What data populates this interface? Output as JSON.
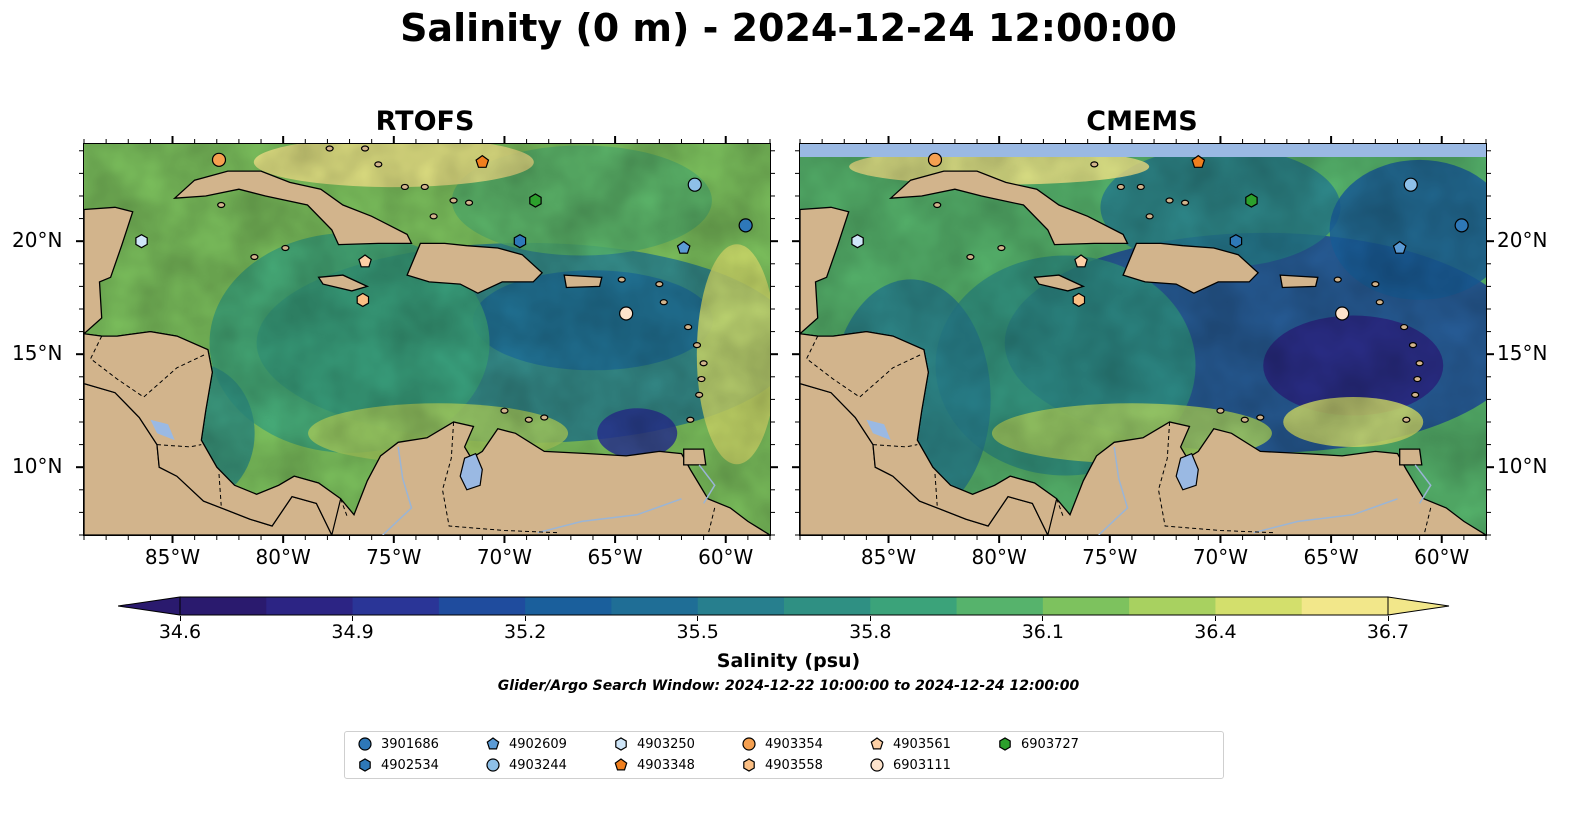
{
  "title": "Salinity (0 m) - 2024-12-24 12:00:00",
  "panels": [
    {
      "title": "RTOFS"
    },
    {
      "title": "CMEMS"
    }
  ],
  "map": {
    "lon_labels": [
      "85°W",
      "80°W",
      "75°W",
      "70°W",
      "65°W",
      "60°W"
    ],
    "lat_labels": [
      "20°N",
      "15°N",
      "10°N"
    ],
    "land_color": "#d2b48c",
    "lake_color": "#9ab9e3"
  },
  "colorbar": {
    "label": "Salinity (psu)",
    "ticks": [
      "34.6",
      "34.9",
      "35.2",
      "35.5",
      "35.8",
      "36.1",
      "36.4",
      "36.7"
    ],
    "vmin": 34.6,
    "vmax": 36.7,
    "colors": [
      "#2a1a6e",
      "#2c2484",
      "#2a3597",
      "#1f4c9e",
      "#1a5f9c",
      "#1f6e96",
      "#277f8e",
      "#2f9083",
      "#3ba37a",
      "#56b36c",
      "#7dc25e",
      "#a8d160",
      "#d3df6c",
      "#f2e78a"
    ]
  },
  "search_window": "Glider/Argo Search Window: 2024-12-22 10:00:00 to 2024-12-24 12:00:00",
  "legend": {
    "items": [
      {
        "id": "3901686",
        "marker": "circle",
        "color": "#2e78b8"
      },
      {
        "id": "4902534",
        "marker": "hexagon",
        "color": "#2e78b8"
      },
      {
        "id": "4902609",
        "marker": "pentagon",
        "color": "#5b9bd5"
      },
      {
        "id": "4903244",
        "marker": "circle",
        "color": "#8ec0e8"
      },
      {
        "id": "4903250",
        "marker": "hexagon",
        "color": "#cfe6f8"
      },
      {
        "id": "4903348",
        "marker": "pentagon",
        "color": "#f07f1e"
      },
      {
        "id": "4903354",
        "marker": "circle",
        "color": "#f5a050"
      },
      {
        "id": "4903558",
        "marker": "hexagon",
        "color": "#fbbf84"
      },
      {
        "id": "4903561",
        "marker": "pentagon",
        "color": "#fdd0a6"
      },
      {
        "id": "6903111",
        "marker": "circle",
        "color": "#fde3cc"
      },
      {
        "id": "6903727",
        "marker": "hexagon",
        "color": "#2ca02c"
      }
    ]
  },
  "floats": [
    {
      "id": "3901686",
      "lon": -59.1,
      "lat": 20.7
    },
    {
      "id": "4902534",
      "lon": -69.3,
      "lat": 20.0
    },
    {
      "id": "4902609",
      "lon": -61.9,
      "lat": 19.7
    },
    {
      "id": "4903244",
      "lon": -61.4,
      "lat": 22.5
    },
    {
      "id": "4903250",
      "lon": -86.4,
      "lat": 20.0
    },
    {
      "id": "4903348",
      "lon": -71.0,
      "lat": 23.5
    },
    {
      "id": "4903354",
      "lon": -82.9,
      "lat": 23.6
    },
    {
      "id": "4903558",
      "lon": -76.4,
      "lat": 17.4
    },
    {
      "id": "4903561",
      "lon": -76.3,
      "lat": 19.1
    },
    {
      "id": "6903111",
      "lon": -64.5,
      "lat": 16.8
    },
    {
      "id": "6903727",
      "lon": -68.6,
      "lat": 21.8
    }
  ]
}
